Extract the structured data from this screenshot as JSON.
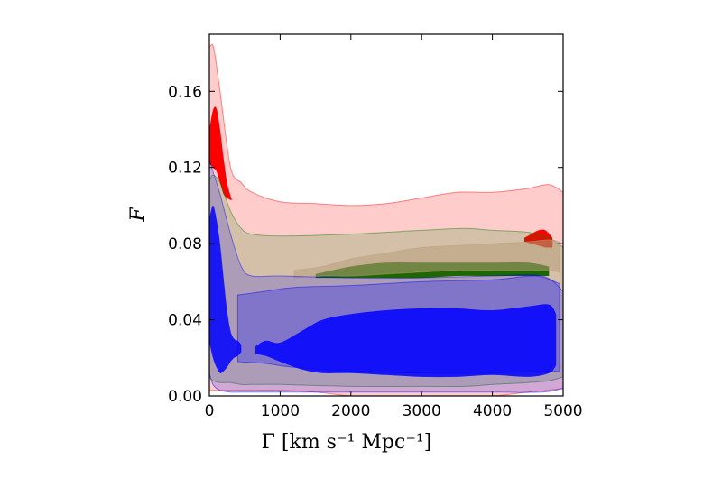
{
  "chart_data": {
    "type": "area",
    "xlabel": "Γ [km s⁻¹ Mpc⁻¹]",
    "ylabel": "F",
    "xlim": [
      0,
      5000
    ],
    "ylim": [
      0,
      0.19
    ],
    "x_ticks": [
      {
        "value": 0,
        "label": "0"
      },
      {
        "value": 1000,
        "label": "1000"
      },
      {
        "value": 2000,
        "label": "2000"
      },
      {
        "value": 3000,
        "label": "3000"
      },
      {
        "value": 4000,
        "label": "4000"
      },
      {
        "value": 5000,
        "label": "5000"
      }
    ],
    "y_ticks": [
      {
        "value": 0.0,
        "label": "0.00"
      },
      {
        "value": 0.04,
        "label": "0.04"
      },
      {
        "value": 0.08,
        "label": "0.08"
      },
      {
        "value": 0.12,
        "label": "0.12"
      },
      {
        "value": 0.16,
        "label": "0.16"
      }
    ],
    "grid": false,
    "legend": "none",
    "series": [
      {
        "color": "#ff0000",
        "band": "outer",
        "opacity": 0.2,
        "x": [
          0,
          60,
          150,
          300,
          450,
          600,
          1000,
          1500,
          2000,
          2500,
          3000,
          3500,
          4000,
          4500,
          4800,
          5000
        ],
        "y_upper": [
          0.183,
          0.183,
          0.16,
          0.12,
          0.112,
          0.107,
          0.102,
          0.101,
          0.1,
          0.101,
          0.104,
          0.107,
          0.107,
          0.109,
          0.111,
          0.107
        ],
        "y_lower": [
          0.003,
          0.003,
          0.003,
          0.003,
          0.003,
          0.003,
          0.003,
          0.002,
          0.0,
          0.0,
          0.0,
          0.0,
          0.0,
          0.002,
          0.003,
          0.004
        ]
      },
      {
        "color": "#ff0000",
        "band": "inner",
        "opacity": 1.0,
        "x": [
          0,
          50,
          100,
          150,
          200,
          250,
          300,
          320
        ],
        "y_upper": [
          0.14,
          0.15,
          0.151,
          0.14,
          0.125,
          0.112,
          0.105,
          0.103
        ],
        "y_lower": [
          0.122,
          0.12,
          0.118,
          0.112,
          0.106,
          0.104,
          0.103,
          0.103
        ]
      },
      {
        "color": "#ff0000",
        "band": "inner",
        "opacity": 1.0,
        "x": [
          4450,
          4550,
          4650,
          4750,
          4850
        ],
        "y_upper": [
          0.083,
          0.085,
          0.087,
          0.087,
          0.083
        ],
        "y_lower": [
          0.081,
          0.08,
          0.079,
          0.078,
          0.078
        ]
      },
      {
        "color": "#008000",
        "band": "outer",
        "opacity": 0.17,
        "x": [
          0,
          50,
          150,
          300,
          450,
          600,
          1000,
          2000,
          3000,
          3600,
          4000,
          4500,
          4800,
          5000
        ],
        "y_upper": [
          0.113,
          0.116,
          0.112,
          0.097,
          0.088,
          0.085,
          0.084,
          0.085,
          0.087,
          0.088,
          0.087,
          0.086,
          0.083,
          0.078
        ],
        "y_lower": [
          0.01,
          0.008,
          0.007,
          0.007,
          0.006,
          0.006,
          0.006,
          0.005,
          0.005,
          0.005,
          0.006,
          0.007,
          0.008,
          0.01
        ]
      },
      {
        "color": "#1e6600",
        "band": "inner",
        "opacity": 1.0,
        "x": [
          1500,
          2000,
          2500,
          3000,
          3500,
          4000,
          4500,
          4800
        ],
        "y_upper": [
          0.064,
          0.068,
          0.07,
          0.07,
          0.07,
          0.07,
          0.07,
          0.068
        ],
        "y_lower": [
          0.062,
          0.062,
          0.062,
          0.062,
          0.063,
          0.063,
          0.063,
          0.063
        ]
      },
      {
        "color": "#b8a07a",
        "band": "outer",
        "opacity": 0.55,
        "x": [
          1200,
          1600,
          2000,
          2500,
          3000,
          3500,
          4000,
          4500,
          4800,
          4950
        ],
        "y_upper": [
          0.066,
          0.068,
          0.072,
          0.075,
          0.078,
          0.079,
          0.08,
          0.081,
          0.082,
          0.081
        ],
        "y_lower": [
          0.062,
          0.063,
          0.063,
          0.064,
          0.065,
          0.066,
          0.066,
          0.066,
          0.066,
          0.065
        ]
      },
      {
        "color": "#0000ff",
        "band": "outer",
        "opacity": 0.18,
        "x": [
          0,
          50,
          150,
          300,
          450,
          600,
          1000,
          2000,
          3000,
          4000,
          4700,
          5000
        ],
        "y_upper": [
          0.124,
          0.118,
          0.106,
          0.085,
          0.068,
          0.063,
          0.063,
          0.062,
          0.062,
          0.063,
          0.063,
          0.055
        ],
        "y_lower": [
          0.012,
          0.006,
          0.003,
          0.002,
          0.002,
          0.002,
          0.002,
          0.002,
          0.002,
          0.002,
          0.002,
          0.004
        ]
      },
      {
        "color": "#0000ff",
        "band": "outer",
        "opacity": 0.25,
        "x": [
          400,
          800,
          1200,
          2000,
          3000,
          4000,
          4600,
          4950
        ],
        "y_upper": [
          0.053,
          0.055,
          0.057,
          0.058,
          0.06,
          0.061,
          0.063,
          0.059
        ],
        "y_lower": [
          0.018,
          0.017,
          0.015,
          0.013,
          0.012,
          0.012,
          0.013,
          0.013
        ]
      },
      {
        "color": "#0000ff",
        "band": "inner",
        "opacity": 0.85,
        "x": [
          0,
          50,
          100,
          150,
          200,
          250,
          300,
          350,
          400,
          450
        ],
        "y_upper": [
          0.093,
          0.1,
          0.093,
          0.08,
          0.062,
          0.045,
          0.034,
          0.03,
          0.029,
          0.027
        ],
        "y_lower": [
          0.028,
          0.02,
          0.015,
          0.012,
          0.013,
          0.015,
          0.018,
          0.02,
          0.021,
          0.023
        ]
      },
      {
        "color": "#0000ff",
        "band": "inner",
        "opacity": 0.85,
        "x": [
          650,
          800,
          1000,
          1300,
          1600,
          2000,
          2500,
          3000,
          3500,
          4000,
          4500,
          4800,
          4900
        ],
        "y_upper": [
          0.026,
          0.029,
          0.028,
          0.034,
          0.04,
          0.043,
          0.045,
          0.046,
          0.046,
          0.045,
          0.047,
          0.048,
          0.043
        ],
        "y_lower": [
          0.022,
          0.021,
          0.018,
          0.014,
          0.012,
          0.012,
          0.011,
          0.01,
          0.01,
          0.011,
          0.01,
          0.012,
          0.016
        ]
      }
    ]
  }
}
